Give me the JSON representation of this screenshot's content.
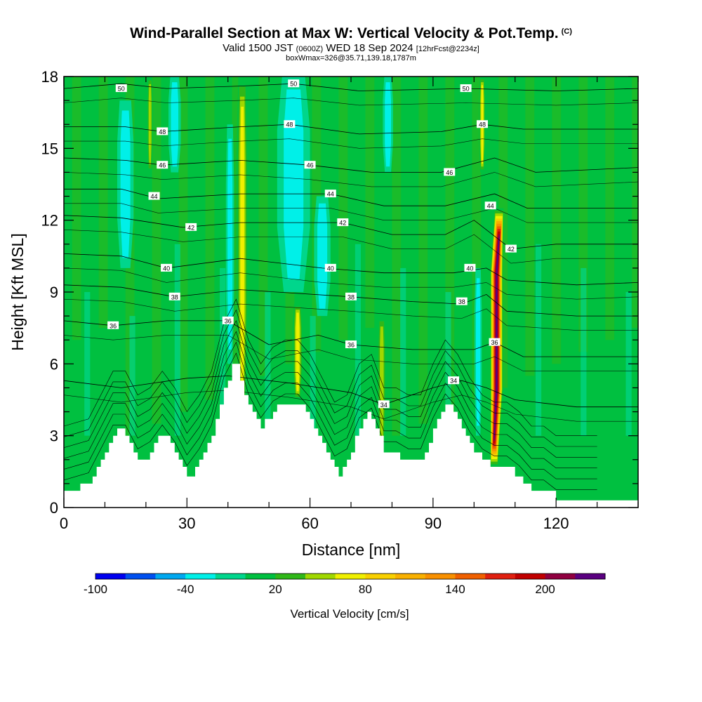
{
  "header": {
    "title": "Wind-Parallel Section at Max W: Vertical Velocity & Pot.Temp.",
    "copyright": "(C)",
    "valid_prefix": "Valid 1500 JST",
    "valid_z": "(0600Z)",
    "valid_date": "WED 18 Sep 2024",
    "forecast": "[12hrFcst@2234z]",
    "box_info": "boxWmax=326@35.71,139.18,1787m"
  },
  "chart_data": {
    "type": "heatmap",
    "title": "Wind-Parallel Section at Max W: Vertical Velocity & Pot.Temp.",
    "xlabel": "Distance [nm]",
    "ylabel": "Height [Kft MSL]",
    "xlim": [
      0,
      140
    ],
    "ylim": [
      0,
      18
    ],
    "x_ticks": [
      "0",
      "30",
      "60",
      "90",
      "120"
    ],
    "y_ticks": [
      "0",
      "3",
      "6",
      "9",
      "12",
      "15",
      "18"
    ],
    "colorbar": {
      "label": "Vertical Velocity [cm/s]",
      "tick_labels": [
        "-100",
        "-40",
        "20",
        "80",
        "140",
        "200"
      ],
      "tick_values": [
        -100,
        -40,
        20,
        80,
        140,
        200
      ],
      "levels": [
        -100,
        -80,
        -60,
        -40,
        -20,
        0,
        20,
        40,
        60,
        80,
        100,
        120,
        140,
        160,
        180,
        200,
        220,
        240
      ],
      "colors": [
        "#0000f0",
        "#0050f0",
        "#00a8f0",
        "#00f0e8",
        "#00d68c",
        "#00c040",
        "#30b818",
        "#a0d800",
        "#f0f000",
        "#f8d000",
        "#f8b000",
        "#f89000",
        "#f06000",
        "#e02010",
        "#c00000",
        "#900040",
        "#5a0080"
      ]
    },
    "terrain": [
      [
        0,
        0.7
      ],
      [
        2,
        0.7
      ],
      [
        4,
        1.0
      ],
      [
        6,
        1.0
      ],
      [
        7,
        1.3
      ],
      [
        8,
        1.7
      ],
      [
        9,
        2.0
      ],
      [
        10,
        2.3
      ],
      [
        11,
        2.7
      ],
      [
        12,
        3.0
      ],
      [
        13,
        3.3
      ],
      [
        14,
        3.3
      ],
      [
        15,
        3.0
      ],
      [
        16,
        2.7
      ],
      [
        17,
        2.3
      ],
      [
        18,
        2.0
      ],
      [
        19,
        2.0
      ],
      [
        20,
        2.0
      ],
      [
        21,
        2.3
      ],
      [
        22,
        2.7
      ],
      [
        23,
        3.0
      ],
      [
        24,
        3.0
      ],
      [
        25,
        3.0
      ],
      [
        26,
        2.7
      ],
      [
        27,
        2.3
      ],
      [
        28,
        2.0
      ],
      [
        29,
        1.7
      ],
      [
        30,
        1.3
      ],
      [
        31,
        1.3
      ],
      [
        32,
        1.7
      ],
      [
        33,
        2.0
      ],
      [
        34,
        2.3
      ],
      [
        35,
        2.7
      ],
      [
        36,
        3.0
      ],
      [
        37,
        3.7
      ],
      [
        38,
        4.3
      ],
      [
        39,
        5.0
      ],
      [
        40,
        5.3
      ],
      [
        41,
        6.0
      ],
      [
        42,
        6.0
      ],
      [
        43,
        5.3
      ],
      [
        44,
        4.7
      ],
      [
        45,
        4.3
      ],
      [
        46,
        4.0
      ],
      [
        47,
        3.7
      ],
      [
        48,
        3.3
      ],
      [
        49,
        3.7
      ],
      [
        50,
        3.7
      ],
      [
        51,
        4.0
      ],
      [
        52,
        4.3
      ],
      [
        53,
        4.3
      ],
      [
        54,
        4.3
      ],
      [
        55,
        4.3
      ],
      [
        56,
        4.3
      ],
      [
        57,
        4.3
      ],
      [
        58,
        4.3
      ],
      [
        59,
        4.0
      ],
      [
        60,
        3.7
      ],
      [
        61,
        3.3
      ],
      [
        62,
        3.0
      ],
      [
        63,
        2.7
      ],
      [
        64,
        2.3
      ],
      [
        65,
        2.0
      ],
      [
        66,
        1.7
      ],
      [
        67,
        1.3
      ],
      [
        68,
        1.7
      ],
      [
        69,
        2.0
      ],
      [
        70,
        2.3
      ],
      [
        71,
        3.0
      ],
      [
        72,
        3.3
      ],
      [
        73,
        3.7
      ],
      [
        74,
        4.0
      ],
      [
        75,
        3.7
      ],
      [
        76,
        3.3
      ],
      [
        77,
        3.0
      ],
      [
        78,
        2.3
      ],
      [
        79,
        2.3
      ],
      [
        80,
        2.3
      ],
      [
        81,
        2.3
      ],
      [
        82,
        2.0
      ],
      [
        83,
        2.0
      ],
      [
        84,
        2.0
      ],
      [
        85,
        2.0
      ],
      [
        86,
        2.0
      ],
      [
        87,
        2.0
      ],
      [
        88,
        2.3
      ],
      [
        89,
        2.7
      ],
      [
        90,
        3.3
      ],
      [
        91,
        3.7
      ],
      [
        92,
        4.0
      ],
      [
        93,
        4.3
      ],
      [
        94,
        4.3
      ],
      [
        95,
        4.0
      ],
      [
        96,
        3.7
      ],
      [
        97,
        3.3
      ],
      [
        98,
        3.0
      ],
      [
        99,
        2.7
      ],
      [
        100,
        2.3
      ],
      [
        101,
        2.3
      ],
      [
        102,
        2.0
      ],
      [
        103,
        2.0
      ],
      [
        104,
        1.7
      ],
      [
        105,
        1.7
      ],
      [
        106,
        1.7
      ],
      [
        107,
        1.7
      ],
      [
        108,
        1.7
      ],
      [
        109,
        1.7
      ],
      [
        110,
        1.3
      ],
      [
        111,
        1.3
      ],
      [
        112,
        1.0
      ],
      [
        113,
        1.0
      ],
      [
        114,
        0.7
      ],
      [
        115,
        0.7
      ],
      [
        116,
        0.7
      ],
      [
        117,
        0.7
      ],
      [
        118,
        0.7
      ],
      [
        119,
        0.7
      ],
      [
        120,
        0.3
      ],
      [
        122,
        0.3
      ],
      [
        125,
        0.3
      ],
      [
        130,
        0.3
      ],
      [
        135,
        0.3
      ],
      [
        140,
        0.3
      ]
    ],
    "vertical_velocity_features": [
      {
        "kind": "updraft",
        "x_center": 43.5,
        "x_width": 2.8,
        "y_from": 4,
        "y_to": 18,
        "peak_cm_s": 80
      },
      {
        "kind": "updraft",
        "x_center": 57,
        "x_width": 2.5,
        "y_from": 4.5,
        "y_to": 8.5,
        "peak_cm_s": 70
      },
      {
        "kind": "updraft",
        "x_center": 77.5,
        "x_width": 2.2,
        "y_from": 2.5,
        "y_to": 8,
        "peak_cm_s": 60
      },
      {
        "kind": "updraft",
        "x_center": 21,
        "x_width": 1.5,
        "y_from": 14,
        "y_to": 18,
        "peak_cm_s": 60
      },
      {
        "kind": "updraft",
        "x_center": 102,
        "x_width": 1.6,
        "y_from": 14,
        "y_to": 18,
        "peak_cm_s": 70
      },
      {
        "kind": "updraft",
        "x_center": 105.5,
        "x_width": 3.2,
        "y_from": 1.7,
        "y_to": 12.5,
        "peak_cm_s": 240
      },
      {
        "kind": "downdraft",
        "x_center": 15,
        "x_width": 4,
        "y_from": 10,
        "y_to": 17,
        "peak_cm_s": -40
      },
      {
        "kind": "downdraft",
        "x_center": 27,
        "x_width": 3,
        "y_from": 14,
        "y_to": 18,
        "peak_cm_s": -30
      },
      {
        "kind": "downdraft",
        "x_center": 40.5,
        "x_width": 2,
        "y_from": 6,
        "y_to": 16,
        "peak_cm_s": -40
      },
      {
        "kind": "downdraft",
        "x_center": 56,
        "x_width": 8,
        "y_from": 9,
        "y_to": 18,
        "peak_cm_s": -40
      },
      {
        "kind": "downdraft",
        "x_center": 63,
        "x_width": 4,
        "y_from": 8,
        "y_to": 13,
        "peak_cm_s": -40
      },
      {
        "kind": "downdraft",
        "x_center": 79,
        "x_width": 2.5,
        "y_from": 14,
        "y_to": 18,
        "peak_cm_s": -40
      },
      {
        "kind": "downdraft",
        "x_center": 101,
        "x_width": 1.8,
        "y_from": 3,
        "y_to": 10,
        "peak_cm_s": -30
      }
    ],
    "theta_labels": [
      "50",
      "48",
      "46",
      "44",
      "42",
      "40",
      "38",
      "36",
      "34"
    ],
    "theta_contours": [
      {
        "label": "50",
        "points": [
          [
            0,
            17.5
          ],
          [
            14,
            17.7
          ],
          [
            25,
            17.5
          ],
          [
            43,
            17.6
          ],
          [
            56,
            17.7
          ],
          [
            72,
            17.4
          ],
          [
            98,
            17.5
          ],
          [
            120,
            17.4
          ],
          [
            140,
            17.5
          ]
        ]
      },
      {
        "label": "48",
        "points": [
          [
            0,
            15.9
          ],
          [
            15,
            15.9
          ],
          [
            24,
            15.7
          ],
          [
            43,
            15.9
          ],
          [
            55,
            16.0
          ],
          [
            72,
            15.6
          ],
          [
            92,
            15.7
          ],
          [
            102,
            16.0
          ],
          [
            112,
            15.8
          ],
          [
            140,
            15.8
          ]
        ]
      },
      {
        "label": "46",
        "points": [
          [
            0,
            14.6
          ],
          [
            15,
            14.5
          ],
          [
            24,
            14.3
          ],
          [
            43,
            14.5
          ],
          [
            60,
            14.3
          ],
          [
            75,
            14.0
          ],
          [
            92,
            14.0
          ],
          [
            105,
            14.6
          ],
          [
            115,
            14.0
          ],
          [
            140,
            14.2
          ]
        ]
      },
      {
        "label": "44",
        "points": [
          [
            0,
            13.3
          ],
          [
            14,
            13.3
          ],
          [
            23,
            12.9
          ],
          [
            43,
            13.1
          ],
          [
            65,
            13.1
          ],
          [
            78,
            12.6
          ],
          [
            93,
            12.6
          ],
          [
            105,
            13.1
          ],
          [
            113,
            12.5
          ],
          [
            140,
            12.5
          ]
        ]
      },
      {
        "label": "42",
        "points": [
          [
            0,
            12.2
          ],
          [
            14,
            12.1
          ],
          [
            29,
            11.7
          ],
          [
            43,
            11.9
          ],
          [
            68,
            11.9
          ],
          [
            80,
            11.4
          ],
          [
            93,
            11.4
          ],
          [
            100,
            12.0
          ],
          [
            109,
            10.8
          ],
          [
            120,
            11.0
          ],
          [
            140,
            11.0
          ]
        ]
      },
      {
        "label": "40",
        "points": [
          [
            0,
            10.6
          ],
          [
            14,
            10.5
          ],
          [
            25,
            10.0
          ],
          [
            43,
            10.4
          ],
          [
            63,
            10.0
          ],
          [
            78,
            9.8
          ],
          [
            95,
            9.8
          ],
          [
            103,
            10.0
          ],
          [
            108,
            9.5
          ],
          [
            125,
            9.3
          ],
          [
            140,
            9.4
          ]
        ]
      },
      {
        "label": "38",
        "points": [
          [
            0,
            9.3
          ],
          [
            14,
            9.2
          ],
          [
            27,
            8.8
          ],
          [
            43,
            9.1
          ],
          [
            70,
            8.8
          ],
          [
            85,
            8.6
          ],
          [
            97,
            8.5
          ],
          [
            103,
            8.9
          ],
          [
            108,
            8.2
          ],
          [
            125,
            8.0
          ],
          [
            140,
            8.0
          ]
        ]
      },
      {
        "label": "36",
        "points": [
          [
            0,
            7.8
          ],
          [
            12,
            7.6
          ],
          [
            25,
            7.8
          ],
          [
            40,
            7.8
          ],
          [
            50,
            6.8
          ],
          [
            62,
            7.2
          ],
          [
            70,
            6.8
          ],
          [
            85,
            6.6
          ],
          [
            100,
            6.6
          ],
          [
            105,
            6.9
          ],
          [
            112,
            6.3
          ],
          [
            125,
            6.3
          ],
          [
            140,
            6.3
          ]
        ]
      },
      {
        "label": "34",
        "points": [
          [
            0,
            5.3
          ],
          [
            14,
            5.0
          ],
          [
            30,
            5.4
          ],
          [
            40,
            5.5
          ],
          [
            55,
            5.2
          ],
          [
            70,
            4.8
          ],
          [
            78,
            4.3
          ],
          [
            90,
            5.0
          ],
          [
            97,
            5.3
          ],
          [
            103,
            5.0
          ],
          [
            110,
            4.5
          ],
          [
            125,
            4.2
          ],
          [
            140,
            4.2
          ]
        ]
      }
    ]
  }
}
